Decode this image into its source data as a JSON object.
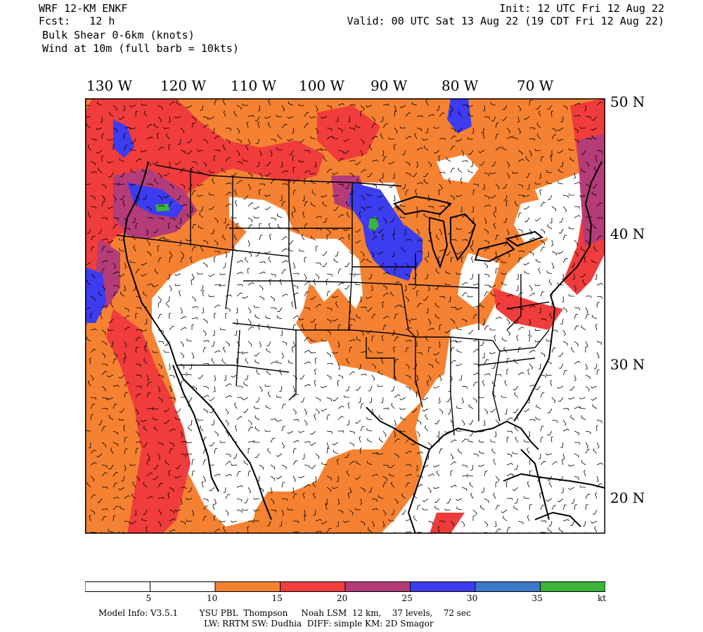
{
  "header": {
    "model": "WRF 12-KM ENKF",
    "fcst": "Fcst:   12 h",
    "field1": "Bulk Shear 0-6km (knots)",
    "field2": "Wind at 10m (full barb = 10kts)",
    "init": "Init: 12 UTC Fri 12 Aug 22",
    "valid": "Valid: 00 UTC Sat 13 Aug 22 (19 CDT Fri 12 Aug 22)"
  },
  "axes": {
    "longitude_labels": [
      "130 W",
      "120 W",
      "110 W",
      "100 W",
      "90 W",
      "80 W",
      "70 W"
    ],
    "latitude_labels": [
      "50 N",
      "40 N",
      "30 N",
      "20 N"
    ]
  },
  "colorbar": {
    "bins": [
      {
        "from": 0,
        "to": 5,
        "color": "#ffffff"
      },
      {
        "from": 5,
        "to": 10,
        "color": "#ffffff"
      },
      {
        "from": 10,
        "to": 15,
        "color": "#f58232"
      },
      {
        "from": 15,
        "to": 20,
        "color": "#f03c3c"
      },
      {
        "from": 20,
        "to": 25,
        "color": "#b43c78"
      },
      {
        "from": 25,
        "to": 30,
        "color": "#3c3cf0"
      },
      {
        "from": 30,
        "to": 35,
        "color": "#3c78c8"
      },
      {
        "from": 35,
        "to": 40,
        "color": "#3cb43c"
      }
    ],
    "tick_labels": [
      "5",
      "10",
      "15",
      "20",
      "25",
      "30",
      "35"
    ],
    "unit": "kt"
  },
  "footer": {
    "line1": "Model Info: V3.5.1        YSU PBL  Thompson     Noah LSM  12 km,    37 levels,    72 sec",
    "line2": "LW: RRTM SW: Dudhia  DIFF: simple KM: 2D Smagor"
  },
  "colors": {
    "orange": "#f58232",
    "red": "#f03c3c",
    "purple": "#b43c78",
    "blue": "#3c3cf0",
    "steel": "#3c78c8",
    "green": "#3cb43c"
  }
}
